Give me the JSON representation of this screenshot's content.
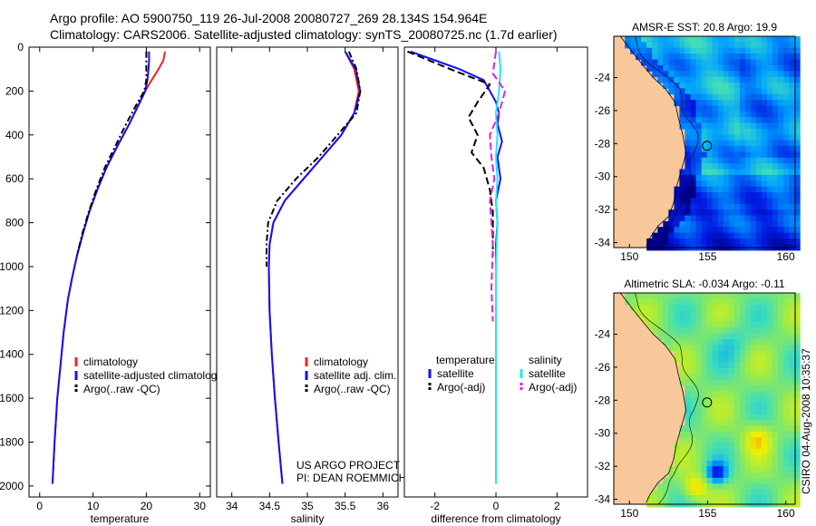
{
  "title_line1": "Argo profile: AO 5900750_119 26-Jul-2008 20080727_269 28.134S 154.964E",
  "title_line2": "Climatology: CARS2006. Satellite-adjusted climatology: synTS_20080725.nc (1.7d earlier)",
  "stamp": "CSIRO 04-Aug-2008 10:35:37",
  "colors": {
    "climatology": "#ff2020",
    "satellite": "#1010ff",
    "argo": "#000000",
    "sat_salinity": "#22e8f0",
    "argo_salinity": "#e020e0",
    "land": "#f8c89a"
  },
  "chart_data": [
    {
      "type": "line",
      "id": "temperature",
      "xlabel": "temperature",
      "ylabel": "",
      "xlim": [
        -2,
        32
      ],
      "ylim": [
        2050,
        0
      ],
      "xticks": [
        0,
        10,
        20,
        30
      ],
      "yticks": [
        0,
        200,
        400,
        600,
        800,
        1000,
        1200,
        1400,
        1600,
        1800,
        2000
      ],
      "legend": [
        "climatology",
        "satellite-adjusted climatolog",
        "Argo(..raw -QC)"
      ],
      "series": [
        {
          "name": "climatology",
          "color": "#ff2020",
          "dash": "",
          "x": [
            23.5,
            23.2,
            22.3,
            21.0,
            19.8,
            18.6,
            16.8,
            14.6,
            12.5,
            10.8,
            9.3,
            8.1,
            7.0,
            6.1,
            5.3,
            4.5,
            3.9,
            3.3,
            2.8,
            2.4
          ],
          "y": [
            20,
            60,
            100,
            150,
            200,
            260,
            350,
            450,
            550,
            650,
            750,
            850,
            950,
            1050,
            1150,
            1300,
            1450,
            1600,
            1800,
            1990
          ]
        },
        {
          "name": "satellite",
          "color": "#1010ff",
          "dash": "",
          "x": [
            20.5,
            20.5,
            20.4,
            20.2,
            19.8,
            18.6,
            16.8,
            14.6,
            12.5,
            10.8,
            9.3,
            8.1,
            7.0,
            6.1,
            5.3,
            4.5,
            3.9,
            3.3,
            2.8,
            2.4
          ],
          "y": [
            20,
            60,
            100,
            150,
            200,
            260,
            350,
            450,
            550,
            650,
            750,
            850,
            950,
            1050,
            1150,
            1300,
            1450,
            1600,
            1800,
            1990
          ]
        },
        {
          "name": "Argo",
          "color": "#000000",
          "dash": "7,3,2,3",
          "x": [
            20.0,
            20.0,
            20.0,
            20.0,
            19.6,
            18.2,
            16.2,
            14.2,
            12.2,
            10.6,
            9.2,
            8.0,
            7.0
          ],
          "y": [
            20,
            60,
            100,
            150,
            200,
            260,
            350,
            450,
            550,
            650,
            750,
            850,
            950
          ]
        }
      ]
    },
    {
      "type": "line",
      "id": "salinity",
      "xlabel": "salinity",
      "ylabel": "",
      "xlim": [
        33.8,
        36.2
      ],
      "ylim": [
        2050,
        0
      ],
      "xticks": [
        34,
        34.5,
        35,
        35.5,
        36
      ],
      "legend": [
        "climatology",
        "satellite adj. clim.",
        "Argo(..raw -QC)"
      ],
      "credit": [
        "US ARGO PROJECT",
        "PI: DEAN ROEMMICH"
      ],
      "series": [
        {
          "name": "climatology",
          "color": "#ff2020",
          "dash": "",
          "x": [
            35.5,
            35.62,
            35.68,
            35.62,
            35.45,
            35.2,
            34.95,
            34.7,
            34.55,
            34.5,
            34.49,
            34.5,
            34.53,
            34.57,
            34.62,
            34.67
          ],
          "y": [
            20,
            100,
            200,
            300,
            400,
            500,
            600,
            700,
            800,
            900,
            1000,
            1200,
            1400,
            1600,
            1800,
            1990
          ]
        },
        {
          "name": "satellite",
          "color": "#1010ff",
          "dash": "",
          "x": [
            35.5,
            35.64,
            35.7,
            35.62,
            35.45,
            35.2,
            34.95,
            34.7,
            34.55,
            34.5,
            34.49,
            34.5,
            34.53,
            34.57,
            34.62,
            34.67
          ],
          "y": [
            20,
            100,
            200,
            300,
            400,
            500,
            600,
            700,
            800,
            900,
            1000,
            1200,
            1400,
            1600,
            1800,
            1990
          ]
        },
        {
          "name": "Argo",
          "color": "#000000",
          "dash": "7,3,2,3",
          "x": [
            35.55,
            35.65,
            35.7,
            35.65,
            35.4,
            35.15,
            34.85,
            34.6,
            34.48,
            34.46,
            34.46
          ],
          "y": [
            20,
            100,
            200,
            300,
            400,
            500,
            600,
            700,
            800,
            900,
            1000
          ]
        }
      ]
    },
    {
      "type": "line",
      "id": "difference",
      "xlabel": "difference from climatology",
      "ylabel": "",
      "xlim": [
        -3,
        3
      ],
      "ylim": [
        2050,
        0
      ],
      "xticks": [
        -2,
        0,
        2
      ],
      "legend_left_header": "temperature",
      "legend_right_header": "salinity",
      "legend_left": [
        "satellite",
        "Argo(-adj)"
      ],
      "legend_right": [
        "satellite",
        "Argo(-adj)"
      ],
      "series": [
        {
          "name": "temperature satellite",
          "color": "#1010ff",
          "dash": "",
          "x": [
            -2.8,
            -2.0,
            -1.2,
            -0.4,
            -0.2,
            0.0,
            0.1,
            0.05,
            0.2,
            0.05,
            0.15,
            0.0,
            0.05,
            0.0,
            0.0,
            0.0
          ],
          "y": [
            20,
            60,
            100,
            150,
            200,
            250,
            300,
            350,
            430,
            500,
            600,
            700,
            800,
            900,
            1200,
            1990
          ]
        },
        {
          "name": "temperature Argo",
          "color": "#000000",
          "dash": "8,4",
          "x": [
            -2.9,
            -1.5,
            -0.2,
            -0.6,
            -0.9,
            -0.6,
            -0.8,
            -0.4,
            -0.2,
            -0.1,
            -0.1
          ],
          "y": [
            20,
            100,
            170,
            250,
            320,
            400,
            480,
            550,
            650,
            750,
            950
          ]
        },
        {
          "name": "salinity satellite",
          "color": "#22e8f0",
          "dash": "",
          "x": [
            0.1,
            0.15,
            0.1,
            0.0,
            0.05,
            0.0,
            0.05,
            0.0,
            0.05,
            0.0,
            0.0,
            0.0
          ],
          "y": [
            20,
            100,
            200,
            300,
            400,
            500,
            600,
            700,
            800,
            1000,
            1400,
            1990
          ]
        },
        {
          "name": "salinity Argo",
          "color": "#e020e0",
          "dash": "8,4",
          "x": [
            0.0,
            -0.1,
            0.3,
            0.1,
            -0.2,
            -0.15,
            -0.05,
            -0.2,
            -0.15,
            -0.1,
            -0.15,
            -0.1
          ],
          "y": [
            20,
            120,
            200,
            300,
            400,
            500,
            600,
            700,
            800,
            900,
            1100,
            1250
          ]
        }
      ]
    },
    {
      "type": "heatmap",
      "id": "sst_map",
      "title": "AMSR-E SST: 20.8 Argo: 19.9",
      "xlim": [
        149,
        160.6
      ],
      "ylim": [
        -34.3,
        -21.5
      ],
      "xticks": [
        150,
        155,
        160
      ],
      "yticks": [
        -24,
        -26,
        -28,
        -30,
        -32,
        -34
      ],
      "marker": {
        "lon": 154.964,
        "lat": -28.134
      }
    },
    {
      "type": "heatmap",
      "id": "sla_map",
      "title": "Altimetric SLA: -0.034 Argo: -0.11",
      "xlim": [
        149,
        160.6
      ],
      "ylim": [
        -34.3,
        -21.5
      ],
      "xticks": [
        150,
        155,
        160
      ],
      "yticks": [
        -24,
        -26,
        -28,
        -30,
        -32,
        -34
      ],
      "marker": {
        "lon": 154.964,
        "lat": -28.134
      }
    }
  ]
}
